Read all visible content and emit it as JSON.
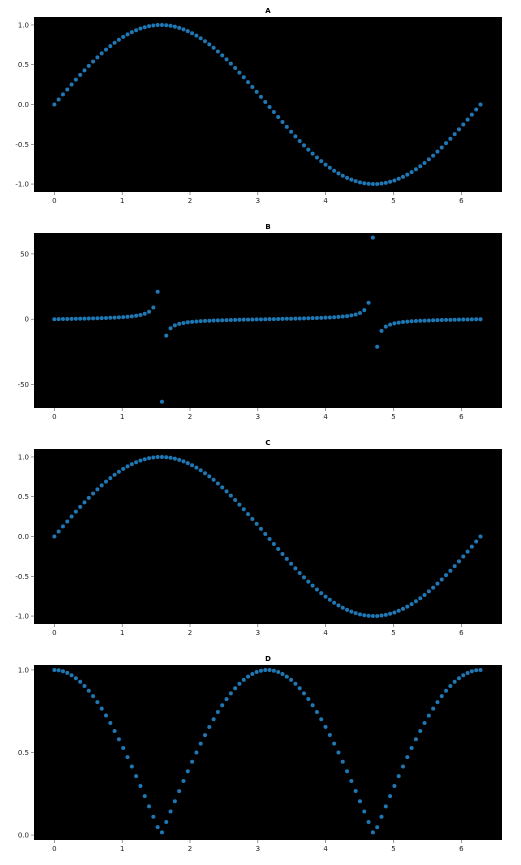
{
  "colors": {
    "background": "#000000",
    "marker": "#1f77b4",
    "page": "#ffffff"
  },
  "chart_data": [
    {
      "type": "scatter",
      "title": "A",
      "function": "sin",
      "x_range": [
        0,
        6.283
      ],
      "point_count": 100,
      "xlim": [
        -0.3,
        6.6
      ],
      "ylim": [
        -1.1,
        1.1
      ],
      "xticks": [
        0,
        1,
        2,
        3,
        4,
        5,
        6
      ],
      "yticks": [
        1.0,
        0.5,
        0.0,
        -0.5,
        -1.0
      ],
      "ytick_labels": [
        "1.0",
        "0.5",
        "0.0",
        "-0.5",
        "-1.0"
      ],
      "grid": false
    },
    {
      "type": "scatter",
      "title": "B",
      "function": "tan",
      "x_range": [
        0,
        6.283
      ],
      "point_count": 100,
      "xlim": [
        -0.3,
        6.6
      ],
      "ylim": [
        -68,
        66
      ],
      "xticks": [
        0,
        1,
        2,
        3,
        4,
        5,
        6
      ],
      "yticks": [
        50,
        0,
        -50
      ],
      "ytick_labels": [
        "50",
        "0",
        "-50"
      ],
      "grid": false
    },
    {
      "type": "scatter",
      "title": "C",
      "function": "sin",
      "x_range": [
        0,
        6.283
      ],
      "point_count": 100,
      "xlim": [
        -0.3,
        6.6
      ],
      "ylim": [
        -1.1,
        1.1
      ],
      "xticks": [
        0,
        1,
        2,
        3,
        4,
        5,
        6
      ],
      "yticks": [
        1.0,
        0.5,
        0.0,
        -0.5,
        -1.0
      ],
      "ytick_labels": [
        "1.0",
        "0.5",
        "0.0",
        "-0.5",
        "-1.0"
      ],
      "grid": false
    },
    {
      "type": "scatter",
      "title": "D",
      "function": "abs_cos",
      "x_range": [
        0,
        6.283
      ],
      "point_count": 100,
      "xlim": [
        -0.3,
        6.6
      ],
      "ylim": [
        -0.03,
        1.03
      ],
      "xticks": [
        0,
        1,
        2,
        3,
        4,
        5,
        6
      ],
      "yticks": [
        1.0,
        0.5,
        0.0
      ],
      "ytick_labels": [
        "1.0",
        "0.5",
        "0.0"
      ],
      "grid": false
    }
  ]
}
